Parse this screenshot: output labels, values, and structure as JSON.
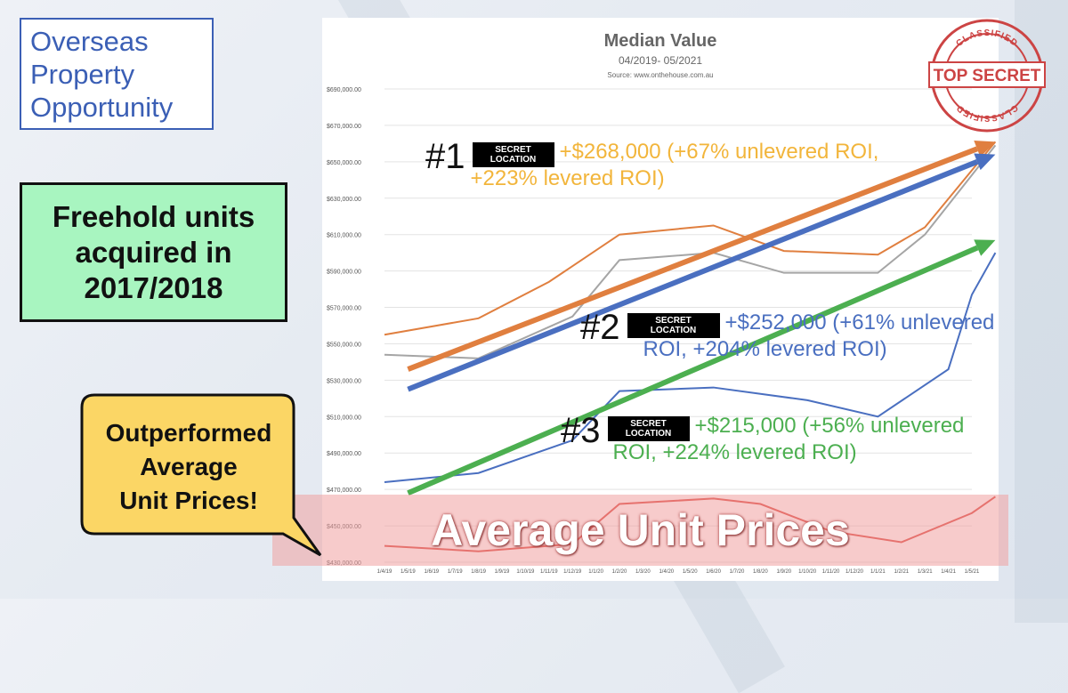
{
  "logo": {
    "lines": [
      "Overseas",
      "Property",
      "Opportunity"
    ]
  },
  "green_box": {
    "lines": [
      "Freehold units",
      "acquired in",
      "2017/2018"
    ]
  },
  "callout": {
    "lines": [
      "Outperformed",
      "Average",
      "Unit Prices!"
    ]
  },
  "stamp": {
    "top_secret": "TOP SECRET",
    "ring": "CLASSIFIED"
  },
  "band": {
    "label": "Average Unit Prices"
  },
  "colors": {
    "orange": "#e07f3f",
    "blue": "#4a6fc0",
    "green": "#4caf50",
    "gray": "#a5a5a5",
    "red": "#d93a32",
    "yellow_text": "#f2b53b"
  },
  "annotations": [
    {
      "num": "#1",
      "tag": [
        "SECRET",
        "LOCATION"
      ],
      "line1": "+$268,000 (+67% unlevered ROI,",
      "line2": "+223% levered ROI)",
      "color": "#f2b53b"
    },
    {
      "num": "#2",
      "tag": [
        "SECRET",
        "LOCATION"
      ],
      "line1": "+$252,000 (+61% unlevered",
      "line2": "ROI, +204% levered ROI)",
      "color": "#4a6fc0"
    },
    {
      "num": "#3",
      "tag": [
        "SECRET",
        "LOCATION"
      ],
      "line1": "+$215,000 (+56% unlevered",
      "line2": "ROI, +224% levered ROI)",
      "color": "#4caf50"
    }
  ],
  "chart_data": {
    "type": "line",
    "title": "Median Value",
    "subtitle": "04/2019- 05/2021",
    "source": "Source: www.onthehouse.com.au",
    "ylim": [
      430000,
      690000
    ],
    "yticks": [
      430000,
      450000,
      470000,
      490000,
      510000,
      530000,
      550000,
      570000,
      590000,
      610000,
      630000,
      650000,
      670000,
      690000
    ],
    "ytick_labels": [
      "$430,000.00",
      "$450,000.00",
      "$470,000.00",
      "$490,000.00",
      "$510,000.00",
      "$530,000.00",
      "$550,000.00",
      "$570,000.00",
      "$590,000.00",
      "$610,000.00",
      "$630,000.00",
      "$650,000.00",
      "$670,000.00",
      "$690,000.00"
    ],
    "categories": [
      "1/4/19",
      "1/5/19",
      "1/6/19",
      "1/7/19",
      "1/8/19",
      "1/9/19",
      "1/10/19",
      "1/11/19",
      "1/12/19",
      "1/1/20",
      "1/2/20",
      "1/3/20",
      "1/4/20",
      "1/5/20",
      "1/6/20",
      "1/7/20",
      "1/8/20",
      "1/9/20",
      "1/10/20",
      "1/11/20",
      "1/12/20",
      "1/1/21",
      "1/2/21",
      "1/3/21",
      "1/4/21",
      "1/5/21"
    ],
    "series": [
      {
        "color": "#e07f3f",
        "points": [
          [
            0,
            555000
          ],
          [
            4,
            564000
          ],
          [
            7,
            584000
          ],
          [
            10,
            610000
          ],
          [
            14,
            615000
          ],
          [
            17,
            601000
          ],
          [
            21,
            599000
          ],
          [
            23,
            614000
          ],
          [
            26,
            661000
          ]
        ]
      },
      {
        "color": "#a5a5a5",
        "points": [
          [
            0,
            544000
          ],
          [
            4,
            542000
          ],
          [
            8,
            565000
          ],
          [
            10,
            596000
          ],
          [
            14,
            600000
          ],
          [
            17,
            589000
          ],
          [
            21,
            589000
          ],
          [
            23,
            610000
          ],
          [
            26,
            659000
          ]
        ]
      },
      {
        "color": "#4a6fc0",
        "points": [
          [
            0,
            474000
          ],
          [
            4,
            479000
          ],
          [
            8,
            497000
          ],
          [
            10,
            524000
          ],
          [
            14,
            526000
          ],
          [
            18,
            519000
          ],
          [
            21,
            510000
          ],
          [
            24,
            536000
          ],
          [
            25,
            577000
          ],
          [
            26,
            600000
          ]
        ]
      },
      {
        "color": "#d93a32",
        "points": [
          [
            0,
            439000
          ],
          [
            4,
            436000
          ],
          [
            8,
            440000
          ],
          [
            10,
            462000
          ],
          [
            14,
            465000
          ],
          [
            16,
            462000
          ],
          [
            18,
            452000
          ],
          [
            19,
            447000
          ],
          [
            22,
            441000
          ],
          [
            25,
            457000
          ],
          [
            26,
            466000
          ]
        ]
      }
    ],
    "trend_arrows": [
      {
        "color": "#e07f3f",
        "from": [
          1,
          536000
        ],
        "to": [
          26,
          661000
        ]
      },
      {
        "color": "#4a6fc0",
        "from": [
          1,
          525000
        ],
        "to": [
          26,
          654000
        ]
      },
      {
        "color": "#4caf50",
        "from": [
          1,
          468000
        ],
        "to": [
          26,
          607000
        ]
      }
    ],
    "grid": true
  }
}
